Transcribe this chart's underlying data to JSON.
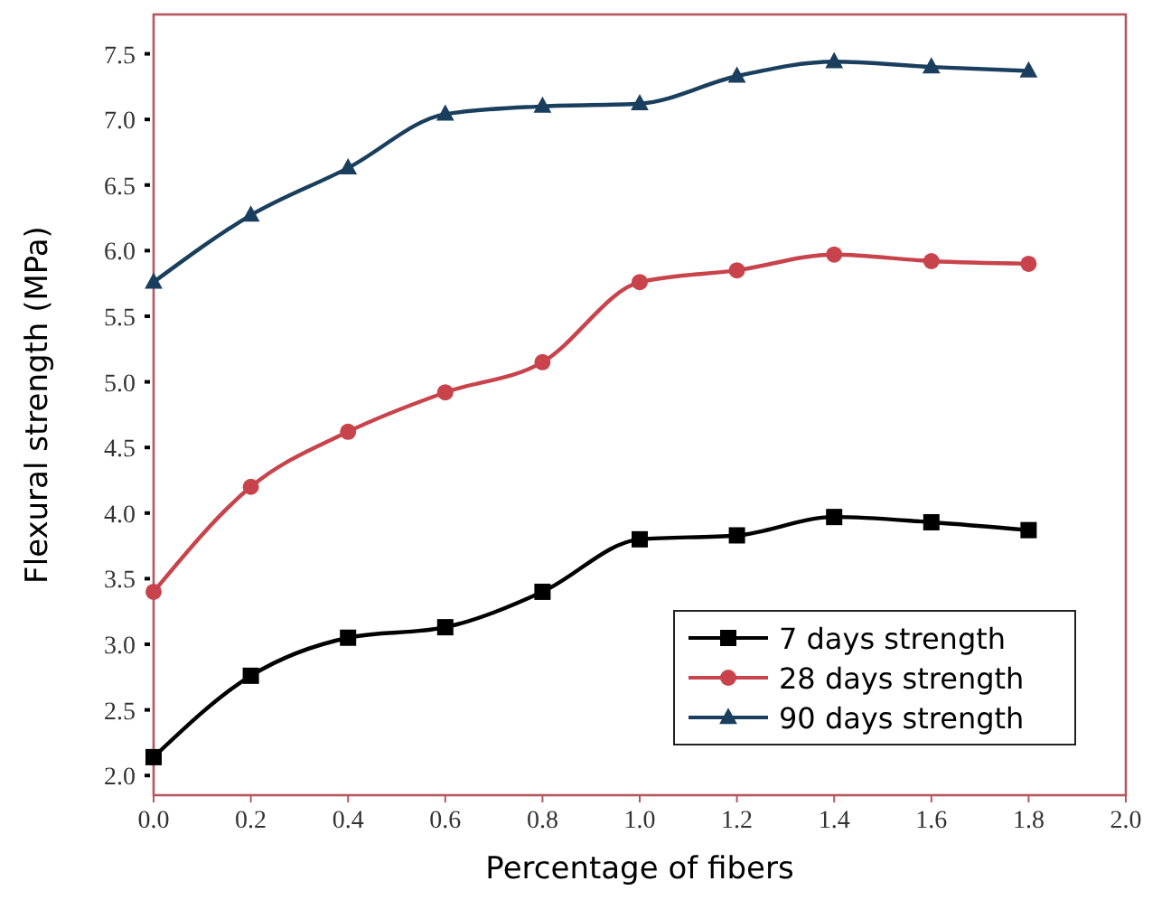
{
  "chart_data": {
    "type": "line",
    "xlabel": "Percentage of fibers",
    "ylabel": "Flexural strength (MPa)",
    "x": [
      0,
      0.2,
      0.4,
      0.6,
      0.8,
      1.0,
      1.2,
      1.4,
      1.6,
      1.8
    ],
    "series": [
      {
        "name": "7 days strength",
        "color": "#000000",
        "marker": "square",
        "values": [
          2.14,
          2.76,
          3.05,
          3.13,
          3.4,
          3.8,
          3.83,
          3.97,
          3.93,
          3.87
        ]
      },
      {
        "name": "28 days strength",
        "color": "#c8434b",
        "marker": "circle",
        "values": [
          3.4,
          4.2,
          4.62,
          4.92,
          5.15,
          5.76,
          5.85,
          5.97,
          5.92,
          5.9
        ]
      },
      {
        "name": "90 days strength",
        "color": "#1a3f5e",
        "marker": "triangle",
        "values": [
          5.76,
          6.27,
          6.63,
          7.04,
          7.1,
          7.12,
          7.33,
          7.44,
          7.4,
          7.37
        ]
      }
    ],
    "xlim": [
      0,
      2
    ],
    "xticks": [
      {
        "value": 0,
        "label": "0.0"
      },
      0.2,
      0.4,
      0.6,
      0.8,
      {
        "value": 1,
        "label": "1.0"
      },
      1.2,
      1.4,
      1.6,
      1.8,
      {
        "value": 2,
        "label": "2.0"
      }
    ],
    "ylim": [
      1.85,
      7.8
    ],
    "yticks": [
      {
        "value": 2,
        "label": "2.0"
      },
      2.5,
      {
        "value": 3,
        "label": "3.0"
      },
      3.5,
      {
        "value": 4,
        "label": "4.0"
      },
      4.5,
      {
        "value": 5,
        "label": "5.0"
      },
      5.5,
      {
        "value": 6,
        "label": "6.0"
      },
      6.5,
      {
        "value": 7,
        "label": "7.0"
      },
      7.5
    ],
    "legend": "bottom right",
    "grid": false,
    "line_style": "solid"
  }
}
